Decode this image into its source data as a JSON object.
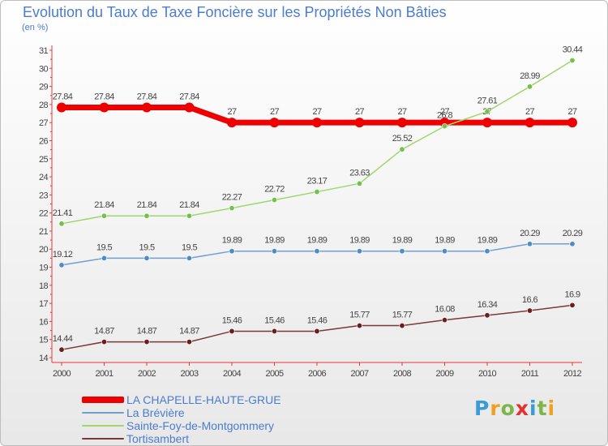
{
  "header": {
    "title": "Evolution du Taux de Taxe Foncière sur les Propriétés Non Bâties",
    "unit": "(en %)"
  },
  "logo": {
    "letters": [
      "P",
      "r",
      "o",
      "x",
      "i",
      "t",
      "i"
    ],
    "colors": [
      "#3a9bd6",
      "#f0a020",
      "#7ab648",
      "#e53030",
      "#3a9bd6",
      "#7ab648",
      "#f0a020"
    ]
  },
  "chart_data": {
    "type": "line",
    "title": "Evolution du Taux de Taxe Foncière sur les Propriétés Non Bâties",
    "ylabel": "(en %)",
    "xlabel": "",
    "x": [
      "2000",
      "2001",
      "2002",
      "2003",
      "2004",
      "2005",
      "2006",
      "2007",
      "2008",
      "2009",
      "2010",
      "2011",
      "2012"
    ],
    "ylim": [
      14,
      31
    ],
    "yticks": [
      14,
      15,
      16,
      17,
      18,
      19,
      20,
      21,
      22,
      23,
      24,
      25,
      26,
      27,
      28,
      29,
      30,
      31
    ],
    "grid": false,
    "legend_position": "bottom-left",
    "series": [
      {
        "name": "LA CHAPELLE-HAUTE-GRUE",
        "color": "#ee0000",
        "width": 7,
        "values": [
          27.84,
          27.84,
          27.84,
          27.84,
          27,
          27,
          27,
          27,
          27,
          27,
          27,
          27,
          27
        ],
        "labels": [
          "27.84",
          "27.84",
          "27.84",
          "27.84",
          "27",
          "27",
          "27",
          "27",
          "27",
          "27",
          "27",
          "27",
          "27"
        ]
      },
      {
        "name": "La Brévière",
        "color": "#6fa0cf",
        "width": 1.5,
        "marker": "#4f8cc6",
        "values": [
          19.12,
          19.5,
          19.5,
          19.5,
          19.89,
          19.89,
          19.89,
          19.89,
          19.89,
          19.89,
          19.89,
          20.29,
          20.29
        ],
        "labels": [
          "19.12",
          "19.5",
          "19.5",
          "19.5",
          "19.89",
          "19.89",
          "19.89",
          "19.89",
          "19.89",
          "19.89",
          "19.89",
          "20.29",
          "20.29"
        ]
      },
      {
        "name": "Sainte-Foy-de-Montgommery",
        "color": "#9fd66e",
        "width": 1.5,
        "marker": "#73c04a",
        "values": [
          21.41,
          21.84,
          21.84,
          21.84,
          22.27,
          22.72,
          23.17,
          23.63,
          25.52,
          26.8,
          27.61,
          28.99,
          30.44
        ],
        "labels": [
          "21.41",
          "21.84",
          "21.84",
          "21.84",
          "22.27",
          "22.72",
          "23.17",
          "23.63",
          "25.52",
          "26.8",
          "27.61",
          "28.99",
          "30.44"
        ]
      },
      {
        "name": "Tortisambert",
        "color": "#7a3838",
        "width": 1.5,
        "marker": "#6b1e1e",
        "values": [
          14.44,
          14.87,
          14.87,
          14.87,
          15.46,
          15.46,
          15.46,
          15.77,
          15.77,
          16.08,
          16.34,
          16.6,
          16.9
        ],
        "labels": [
          "14.44",
          "14.87",
          "14.87",
          "14.87",
          "15.46",
          "15.46",
          "15.46",
          "15.77",
          "15.77",
          "16.08",
          "16.34",
          "16.6",
          "16.9"
        ]
      }
    ]
  }
}
